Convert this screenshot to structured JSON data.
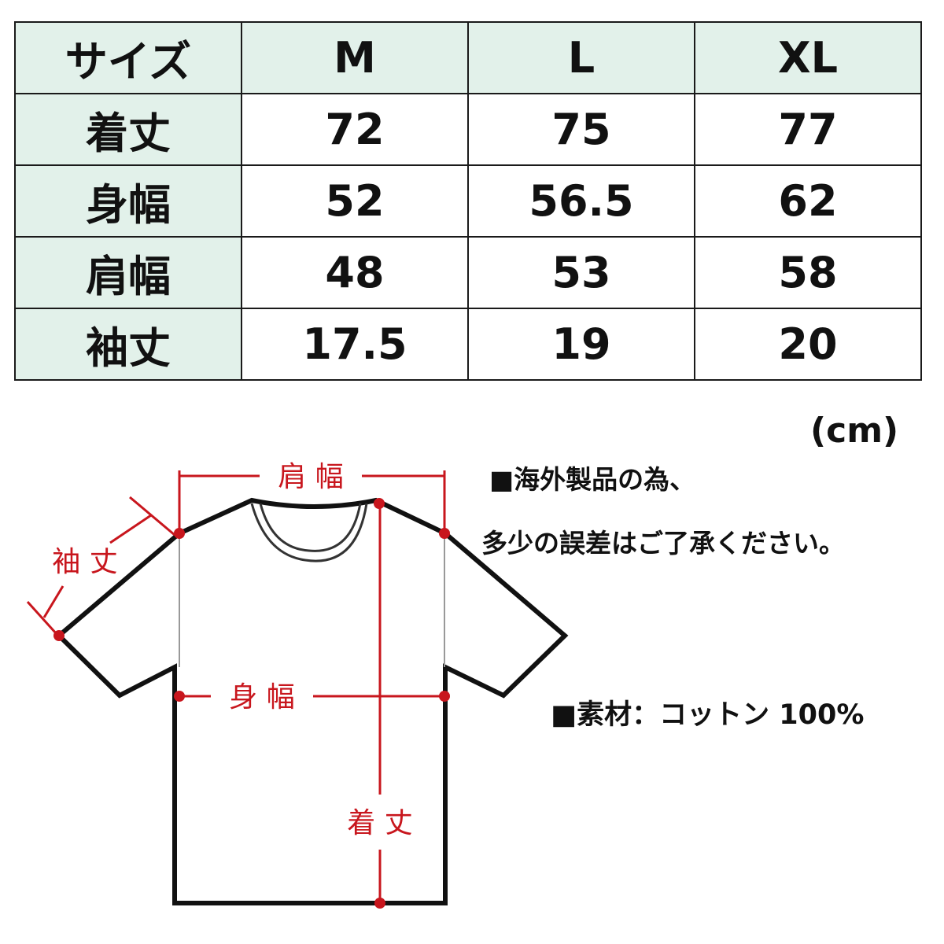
{
  "table": {
    "header": [
      "サイズ",
      "M",
      "L",
      "XL"
    ],
    "rows": [
      {
        "label": "着丈",
        "values": [
          "72",
          "75",
          "77"
        ]
      },
      {
        "label": "身幅",
        "values": [
          "52",
          "56.5",
          "62"
        ]
      },
      {
        "label": "肩幅",
        "values": [
          "48",
          "53",
          "58"
        ]
      },
      {
        "label": "袖丈",
        "values": [
          "17.5",
          "19",
          "20"
        ]
      }
    ]
  },
  "unit": "(cm)",
  "notes": {
    "line1": "■海外製品の為、",
    "line2": "多少の誤差はご了承ください。",
    "material": "■素材：コットン 100%"
  },
  "diagram": {
    "shoulder_label": "肩 幅",
    "sleeve_label": "袖 丈",
    "body_width_label": "身 幅",
    "length_label": "着 丈"
  },
  "colors": {
    "header_bg": "#e2f1ea",
    "measure_red": "#c8161d"
  }
}
